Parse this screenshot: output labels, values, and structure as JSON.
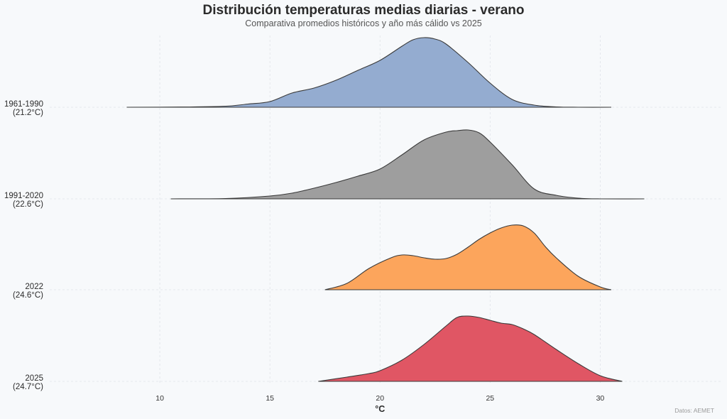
{
  "header": {
    "title": "Distribución temperaturas medias diarias - verano",
    "subtitle": "Comparativa promedios históricos y año más cálido vs 2025"
  },
  "footnote": "Datos: AEMET",
  "chart_data": {
    "type": "area",
    "title": "Distribución temperaturas medias diarias - verano",
    "subtitle": "Comparativa promedios históricos y año más cálido vs 2025",
    "xlabel": "°C",
    "ylabel": "",
    "xlim": [
      5.0,
      35.5
    ],
    "xticks": [
      10,
      15,
      20,
      25,
      30
    ],
    "grid": true,
    "legend": "none",
    "series": [
      {
        "name": "1961-1990",
        "mean_label": "(21.2°C)",
        "color": "#94acd0",
        "x": [
          8.5,
          11.0,
          13.0,
          14.0,
          15.0,
          16.0,
          17.0,
          18.0,
          19.0,
          20.0,
          21.0,
          21.5,
          22.0,
          22.5,
          23.0,
          24.0,
          25.0,
          26.0,
          27.0,
          28.0,
          29.0,
          30.5
        ],
        "y": [
          0.0,
          0.003,
          0.015,
          0.045,
          0.08,
          0.2,
          0.27,
          0.38,
          0.52,
          0.66,
          0.86,
          0.95,
          0.98,
          0.96,
          0.89,
          0.63,
          0.34,
          0.11,
          0.03,
          0.005,
          0.0,
          0.0
        ]
      },
      {
        "name": "1991-2020",
        "mean_label": "(22.6°C)",
        "color": "#9e9e9e",
        "x": [
          10.5,
          13.0,
          15.0,
          16.0,
          17.0,
          18.0,
          19.0,
          20.0,
          21.0,
          22.0,
          23.0,
          23.5,
          24.0,
          24.5,
          25.0,
          26.0,
          27.0,
          28.0,
          29.0,
          30.0,
          32.0
        ],
        "y": [
          0.0,
          0.005,
          0.04,
          0.08,
          0.15,
          0.23,
          0.32,
          0.42,
          0.62,
          0.83,
          0.94,
          0.96,
          0.97,
          0.93,
          0.8,
          0.48,
          0.14,
          0.05,
          0.01,
          0.0,
          0.0
        ]
      },
      {
        "name": "2022",
        "mean_label": "(24.6°C)",
        "color": "#fca55c",
        "x": [
          17.5,
          18.5,
          19.5,
          20.5,
          21.0,
          21.5,
          22.0,
          22.5,
          23.0,
          23.5,
          24.0,
          24.5,
          25.0,
          25.5,
          26.0,
          26.5,
          27.0,
          27.5,
          28.0,
          29.0,
          30.0,
          30.5
        ],
        "y": [
          0.0,
          0.09,
          0.3,
          0.45,
          0.49,
          0.48,
          0.45,
          0.43,
          0.44,
          0.5,
          0.6,
          0.71,
          0.8,
          0.87,
          0.91,
          0.9,
          0.8,
          0.61,
          0.45,
          0.19,
          0.04,
          0.0
        ]
      },
      {
        "name": "2025",
        "mean_label": "(24.7°C)",
        "color": "#e05664",
        "x": [
          17.2,
          18.5,
          19.5,
          20.0,
          21.0,
          22.0,
          23.0,
          23.5,
          24.0,
          24.5,
          25.0,
          25.5,
          26.0,
          26.5,
          27.0,
          28.0,
          29.0,
          30.0,
          31.0
        ],
        "y": [
          0.0,
          0.06,
          0.11,
          0.15,
          0.3,
          0.52,
          0.78,
          0.9,
          0.92,
          0.9,
          0.86,
          0.82,
          0.8,
          0.74,
          0.66,
          0.45,
          0.25,
          0.08,
          0.0
        ]
      }
    ]
  }
}
